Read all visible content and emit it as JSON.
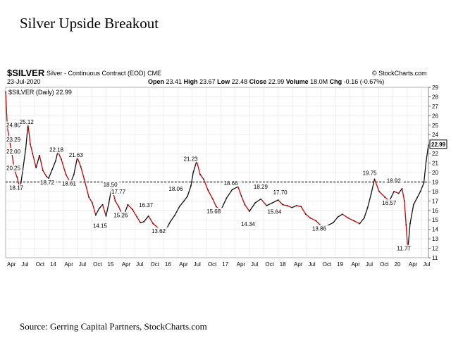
{
  "page_title": "Silver Upside Breakout",
  "source": "Source: Gerring Capital Partners, StockCharts.com",
  "header": {
    "symbol": "$SILVER",
    "description": "Silver - Continuous Contract (EOD)",
    "exchange": "CME",
    "brand": "© StockCharts.com",
    "date": "23-Jul-2020",
    "open_label": "Open",
    "open": "23.41",
    "high_label": "High",
    "high": "23.67",
    "low_label": "Low",
    "low": "22.48",
    "close_label": "Close",
    "close": "22.99",
    "volume_label": "Volume",
    "volume": "18.0M",
    "chg_label": "Chg",
    "chg": "-0.16 (-0.67%)"
  },
  "legend": "$SILVER (Daily) 22.99",
  "colors": {
    "price_line": "#111111",
    "down_line": "#cc0000",
    "last_price_box": "#000000",
    "grid": "#dddddd"
  },
  "chart_data": {
    "type": "line",
    "ylim": [
      11,
      29
    ],
    "y_ticks": [
      11,
      12,
      13,
      14,
      15,
      16,
      17,
      18,
      19,
      20,
      21,
      22,
      23,
      24,
      25,
      26,
      27,
      28,
      29
    ],
    "x_labels": [
      "Apr",
      "Jul",
      "Oct",
      "14",
      "Apr",
      "Jul",
      "Oct",
      "15",
      "Apr",
      "Jul",
      "Oct",
      "16",
      "Apr",
      "Jul",
      "Oct",
      "17",
      "Apr",
      "Jul",
      "Oct",
      "18",
      "Apr",
      "Jul",
      "Oct",
      "19",
      "Apr",
      "Jul",
      "Oct",
      "20",
      "Apr",
      "Jul"
    ],
    "x_start": 2013.25,
    "x_end": 2020.62,
    "resistance_level": 19,
    "last_price": "22.99",
    "series": [
      {
        "x": [
          2013.25,
          2013.28,
          2013.32,
          2013.36,
          2013.4,
          2013.45,
          2013.5,
          2013.55,
          2013.6,
          2013.64,
          2013.68,
          2013.72,
          2013.78,
          2013.84,
          2013.9,
          2013.96,
          2014.0,
          2014.06,
          2014.12,
          2014.16,
          2014.22,
          2014.3,
          2014.38,
          2014.44,
          2014.5,
          2014.56,
          2014.62,
          2014.7,
          2014.76,
          2014.82,
          2014.88,
          2014.94,
          2015.0,
          2015.05,
          2015.1,
          2015.16,
          2015.22,
          2015.3,
          2015.38,
          2015.46,
          2015.54,
          2015.6,
          2015.66,
          2015.74,
          2015.82,
          2015.9,
          2015.96,
          2016.04,
          2016.12,
          2016.2,
          2016.28,
          2016.36,
          2016.42,
          2016.48,
          2016.52,
          2016.58,
          2016.64,
          2016.7,
          2016.78,
          2016.86,
          2016.92,
          2017.0,
          2017.1,
          2017.2,
          2017.3,
          2017.36,
          2017.42,
          2017.5,
          2017.6,
          2017.7,
          2017.8,
          2017.9,
          2018.0,
          2018.08,
          2018.16,
          2018.24,
          2018.32,
          2018.4,
          2018.48,
          2018.56,
          2018.66,
          2018.76,
          2018.86,
          2018.96,
          2019.04,
          2019.12,
          2019.22,
          2019.32,
          2019.42,
          2019.5,
          2019.56,
          2019.62,
          2019.68,
          2019.76,
          2019.86,
          2019.94,
          2020.02,
          2020.1,
          2020.16,
          2020.2,
          2020.23,
          2020.26,
          2020.3,
          2020.36,
          2020.42,
          2020.48,
          2020.54,
          2020.58,
          2020.62
        ],
        "y": [
          28.5,
          24.8,
          23.3,
          22.0,
          20.3,
          19.5,
          18.2,
          20.3,
          22.5,
          25.1,
          23.0,
          22.0,
          20.5,
          21.8,
          20.2,
          19.6,
          19.4,
          20.3,
          21.2,
          22.2,
          21.4,
          19.8,
          18.9,
          19.8,
          21.6,
          20.6,
          19.3,
          17.4,
          16.8,
          15.5,
          16.2,
          16.6,
          15.4,
          16.8,
          18.5,
          17.0,
          16.4,
          15.3,
          16.6,
          16.1,
          15.3,
          14.7,
          14.8,
          15.4,
          14.6,
          14.2,
          13.7,
          13.9,
          14.8,
          15.5,
          16.4,
          17.0,
          17.5,
          18.6,
          20.0,
          21.2,
          19.8,
          19.3,
          18.1,
          17.2,
          16.4,
          16.0,
          17.3,
          18.2,
          18.5,
          17.5,
          16.6,
          15.9,
          16.8,
          17.2,
          16.5,
          16.8,
          17.1,
          16.6,
          16.5,
          16.3,
          16.5,
          16.4,
          15.6,
          15.2,
          14.9,
          14.3,
          14.4,
          14.7,
          15.3,
          15.6,
          15.2,
          14.9,
          14.6,
          15.2,
          16.3,
          17.7,
          19.3,
          18.0,
          17.4,
          17.0,
          18.0,
          17.8,
          18.3,
          17.0,
          14.5,
          11.8,
          14.6,
          16.6,
          17.3,
          18.0,
          18.9,
          21.2,
          22.9
        ]
      }
    ],
    "annotations": [
      {
        "label": "24.80",
        "x": 2013.28,
        "y": 24.8
      },
      {
        "label": "23.29",
        "x": 2013.32,
        "y": 23.29
      },
      {
        "label": "22.00",
        "x": 2013.32,
        "y": 22.0
      },
      {
        "label": "20.25",
        "x": 2013.36,
        "y": 20.25
      },
      {
        "label": "18.17",
        "x": 2013.46,
        "y": 18.17
      },
      {
        "label": "25.12",
        "x": 2013.64,
        "y": 25.12
      },
      {
        "label": "18.72",
        "x": 2014.0,
        "y": 18.72
      },
      {
        "label": "22.18",
        "x": 2014.16,
        "y": 22.18
      },
      {
        "label": "18.61",
        "x": 2014.38,
        "y": 18.61
      },
      {
        "label": "21.63",
        "x": 2014.5,
        "y": 21.63
      },
      {
        "label": "14.15",
        "x": 2014.92,
        "y": 14.15
      },
      {
        "label": "18.50",
        "x": 2015.1,
        "y": 18.5
      },
      {
        "label": "17.77",
        "x": 2015.24,
        "y": 17.77
      },
      {
        "label": "15.26",
        "x": 2015.28,
        "y": 15.26
      },
      {
        "label": "16.37",
        "x": 2015.72,
        "y": 16.37
      },
      {
        "label": "13.62",
        "x": 2015.94,
        "y": 13.62
      },
      {
        "label": "18.06",
        "x": 2016.24,
        "y": 18.06
      },
      {
        "label": "21.23",
        "x": 2016.5,
        "y": 21.23
      },
      {
        "label": "15.68",
        "x": 2016.9,
        "y": 15.68
      },
      {
        "label": "18.66",
        "x": 2017.2,
        "y": 18.66
      },
      {
        "label": "14.34",
        "x": 2017.5,
        "y": 14.34
      },
      {
        "label": "18.29",
        "x": 2017.72,
        "y": 18.29
      },
      {
        "label": "15.64",
        "x": 2017.96,
        "y": 15.64
      },
      {
        "label": "17.70",
        "x": 2018.06,
        "y": 17.7
      },
      {
        "label": "13.86",
        "x": 2018.74,
        "y": 13.86
      },
      {
        "label": "19.75",
        "x": 2019.62,
        "y": 19.75
      },
      {
        "label": "16.57",
        "x": 2019.96,
        "y": 16.57
      },
      {
        "label": "18.92",
        "x": 2020.04,
        "y": 18.92
      },
      {
        "label": "11.77",
        "x": 2020.22,
        "y": 11.77
      }
    ]
  }
}
